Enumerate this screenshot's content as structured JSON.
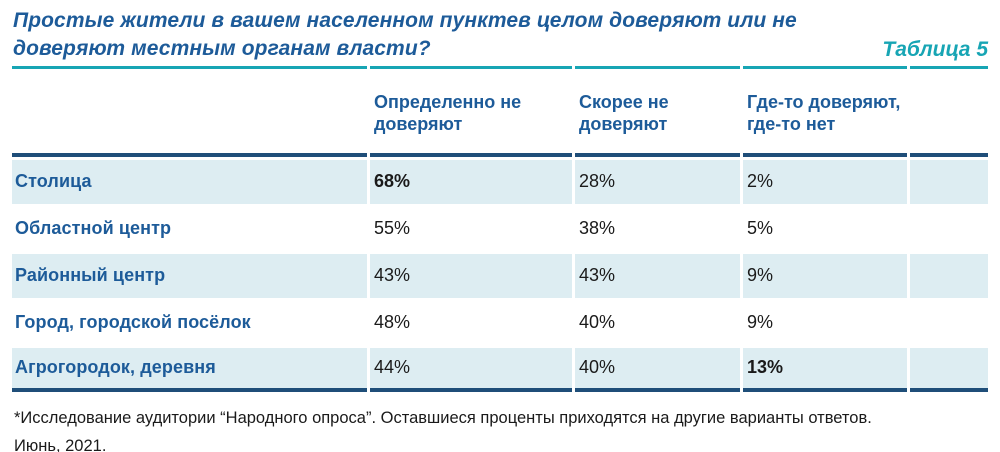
{
  "header": {
    "title": "Простые жители в вашем населенном пунктев целом доверяют или не доверяют местным органам власти?",
    "table_label": "Таблица 5"
  },
  "chart_data": {
    "type": "table",
    "title": "Простые жители в вашем населенном пунктев целом доверяют или не доверяют местным органам власти?",
    "columns": [
      "",
      "Определенно не доверяют",
      "Скорее не доверяют",
      "Где-то доверяют, где-то нет"
    ],
    "rows": [
      {
        "label": "Столица",
        "values": [
          {
            "text": "68%",
            "bold": true
          },
          {
            "text": "28%",
            "bold": false
          },
          {
            "text": "2%",
            "bold": false
          }
        ]
      },
      {
        "label": "Областной центр",
        "values": [
          {
            "text": "55%",
            "bold": false
          },
          {
            "text": "38%",
            "bold": false
          },
          {
            "text": "5%",
            "bold": false
          }
        ]
      },
      {
        "label": "Районный центр",
        "values": [
          {
            "text": "43%",
            "bold": false
          },
          {
            "text": "43%",
            "bold": false
          },
          {
            "text": "9%",
            "bold": false
          }
        ]
      },
      {
        "label": "Город, городской посёлок",
        "values": [
          {
            "text": "48%",
            "bold": false
          },
          {
            "text": "40%",
            "bold": false
          },
          {
            "text": "9%",
            "bold": false
          }
        ]
      },
      {
        "label": "Агрогородок, деревня",
        "values": [
          {
            "text": "44%",
            "bold": false
          },
          {
            "text": "40%",
            "bold": false
          },
          {
            "text": "13%",
            "bold": true
          }
        ]
      }
    ],
    "units": "percent",
    "notes": "Bold values mark emphasized cells (68% Столица / Определенно не доверяют; 13% Агрогородок, деревня / Где-то доверяют, где-то нет)"
  },
  "footnote": {
    "line1": "*Исследование аудитории “Народного опроса”. Оставшиеся проценты приходятся на другие варианты ответов.",
    "line2": "Июнь, 2021."
  },
  "colors": {
    "title_blue": "#1d5b99",
    "teal_accent": "#17a5b4",
    "navy_rule": "#1f4e79",
    "row_stripe": "#ddedf2",
    "value_text": "#1a1a1a"
  }
}
